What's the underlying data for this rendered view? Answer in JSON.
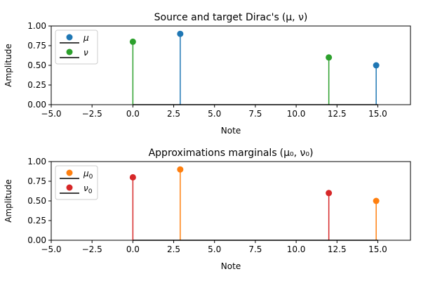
{
  "chart_data": [
    {
      "type": "stem",
      "title": "Source and target Dirac's",
      "title_math": "(μ, ν)",
      "xlabel": "Note",
      "ylabel": "Amplitude",
      "xlim": [
        -5,
        17
      ],
      "ylim": [
        0,
        1
      ],
      "xticks": [
        "−5.0",
        "−2.5",
        "0.0",
        "2.5",
        "5.0",
        "7.5",
        "10.0",
        "12.5",
        "15.0"
      ],
      "yticks": [
        "0.00",
        "0.25",
        "0.50",
        "0.75",
        "1.00"
      ],
      "legend_placement": "upper-left",
      "baseline": {
        "from": 0,
        "to": 15,
        "color": "#000000"
      },
      "series": [
        {
          "name": "μ",
          "name_sub": "",
          "color": "#1f77b4",
          "x": [
            2.9,
            14.9
          ],
          "y": [
            0.9,
            0.5
          ]
        },
        {
          "name": "ν",
          "name_sub": "",
          "color": "#2ca02c",
          "x": [
            0,
            12
          ],
          "y": [
            0.8,
            0.6
          ]
        }
      ]
    },
    {
      "type": "stem",
      "title": "Approximations marginals",
      "title_math": "(μ₀, ν₀)",
      "xlabel": "Note",
      "ylabel": "Amplitude",
      "xlim": [
        -5,
        17
      ],
      "ylim": [
        0,
        1
      ],
      "xticks": [
        "−5.0",
        "−2.5",
        "0.0",
        "2.5",
        "5.0",
        "7.5",
        "10.0",
        "12.5",
        "15.0"
      ],
      "yticks": [
        "0.00",
        "0.25",
        "0.50",
        "0.75",
        "1.00"
      ],
      "legend_placement": "upper-left",
      "baseline": {
        "from": 0,
        "to": 15,
        "color": "#000000"
      },
      "series": [
        {
          "name": "μ",
          "name_sub": "0",
          "color": "#ff7f0e",
          "x": [
            2.9,
            14.9
          ],
          "y": [
            0.9,
            0.5
          ]
        },
        {
          "name": "ν",
          "name_sub": "0",
          "color": "#d62728",
          "x": [
            0,
            12
          ],
          "y": [
            0.8,
            0.6
          ]
        }
      ]
    }
  ]
}
